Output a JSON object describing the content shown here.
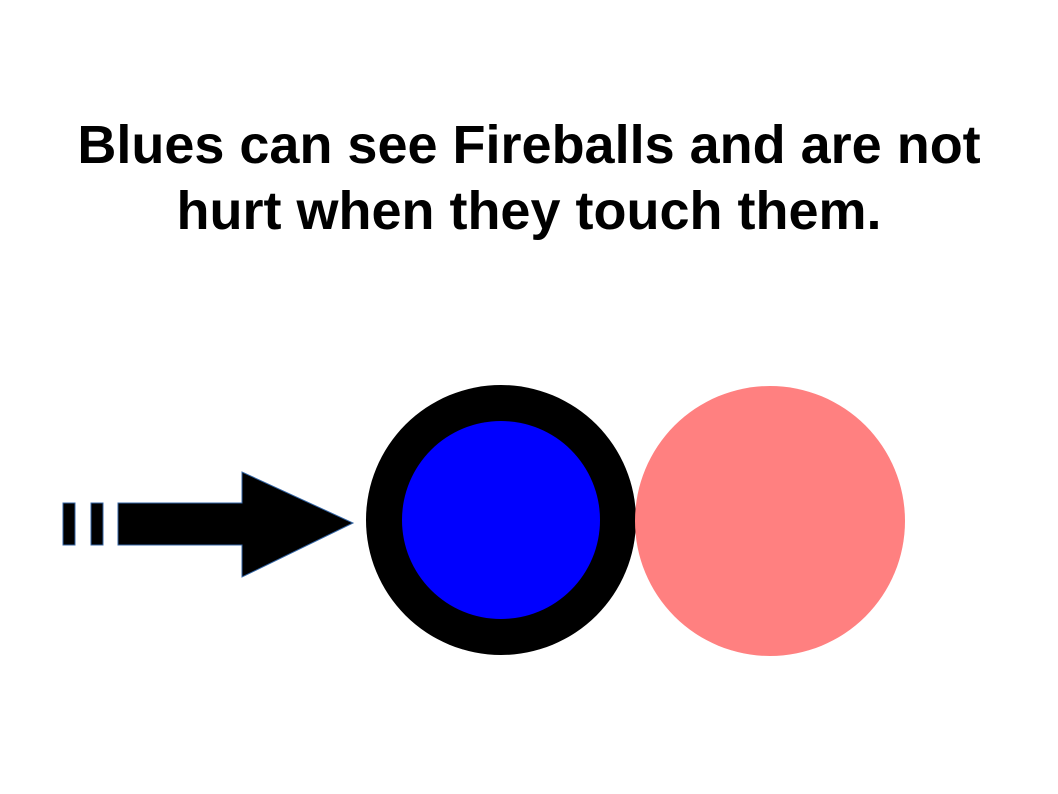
{
  "slide": {
    "title_lines": [
      "Blues can see Fireballs and are not",
      "hurt when they touch them."
    ]
  },
  "diagram": {
    "arrow": {
      "icon": "striped-right-arrow-icon",
      "color": "#000000",
      "outline_color": "#3465a4"
    },
    "blue_ball": {
      "icon": "blue-ball-icon",
      "fill_color": "#0000ff",
      "ring_color": "#000000"
    },
    "fireball": {
      "icon": "fireball-icon",
      "fill_color": "#ff8080"
    }
  }
}
